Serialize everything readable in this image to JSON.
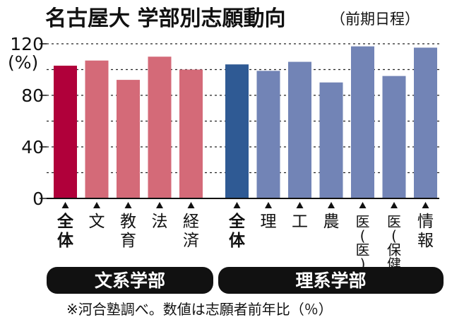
{
  "chart_data": {
    "type": "bar",
    "title": "名古屋大 学部別志願動向",
    "subtitle": "（前期日程）",
    "ylabel": "(%)",
    "ylim": [
      0,
      120
    ],
    "yticks": [
      0,
      40,
      80,
      120
    ],
    "grid": "dotted-horizontal",
    "groups": [
      {
        "label": "文系学部",
        "categories": [
          "全体",
          "文",
          "教育",
          "法",
          "経済"
        ],
        "values": [
          103,
          107,
          92,
          110,
          100
        ],
        "colors": [
          "#b0003a",
          "#d46a78",
          "#d46a78",
          "#d46a78",
          "#d46a78"
        ]
      },
      {
        "label": "理系学部",
        "categories": [
          "全体",
          "理",
          "工",
          "農",
          "医(医)",
          "医(保健)",
          "情報"
        ],
        "values": [
          104,
          99,
          106,
          90,
          118,
          95,
          117
        ],
        "colors": [
          "#2f5a94",
          "#7284b6",
          "#7284b6",
          "#7284b6",
          "#7284b6",
          "#7284b6",
          "#7284b6"
        ]
      }
    ],
    "footnote": "※河合塾調べ。数値は志願者前年比（％）"
  }
}
